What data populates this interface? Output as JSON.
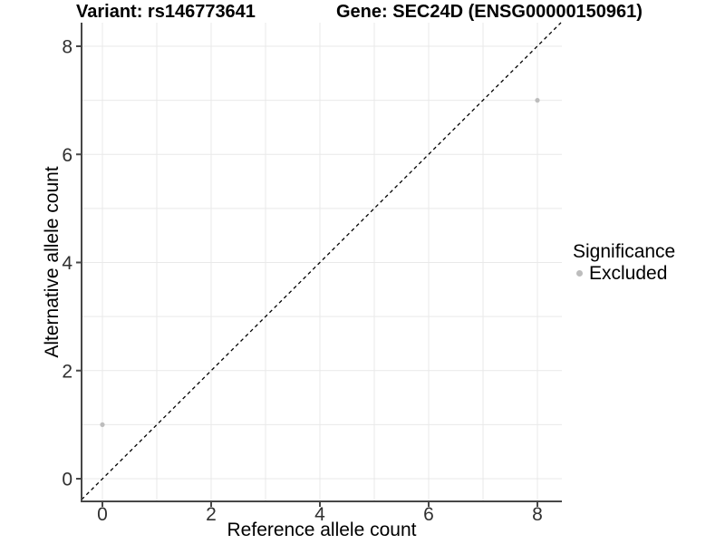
{
  "header": {
    "variant_title": "Variant: rs146773641",
    "gene_title": "Gene: SEC24D (ENSG00000150961)"
  },
  "legend": {
    "title": "Significance",
    "items": [
      {
        "label": "Excluded",
        "color": "#bdbdbd"
      }
    ]
  },
  "colors": {
    "background": "#ffffff",
    "gridline": "#e9e9e9",
    "axis_line": "#474747",
    "tick_mark": "#474747",
    "tick_label": "#303030",
    "point_excluded": "#bdbdbd",
    "identity_line": "#000000",
    "title_text": "#000000"
  },
  "chart_data": {
    "type": "scatter",
    "title": "Variant: rs146773641 | Gene: SEC24D (ENSG00000150961)",
    "xlabel": "Reference allele count",
    "ylabel": "Alternative allele count",
    "xlim": [
      -0.45,
      8.45
    ],
    "ylim": [
      -0.45,
      8.45
    ],
    "x_ticks": [
      0,
      2,
      4,
      6,
      8
    ],
    "y_ticks": [
      0,
      2,
      4,
      6,
      8
    ],
    "gridlines": [
      0,
      1,
      2,
      3,
      4,
      5,
      6,
      7,
      8
    ],
    "grid": true,
    "legend_position": "right",
    "series": [
      {
        "name": "Excluded",
        "color": "#bdbdbd",
        "points": [
          {
            "x": 0,
            "y": 1
          },
          {
            "x": 8,
            "y": 7
          }
        ]
      }
    ],
    "reference_line": {
      "type": "identity",
      "style": "dashed",
      "color": "#000000"
    }
  }
}
